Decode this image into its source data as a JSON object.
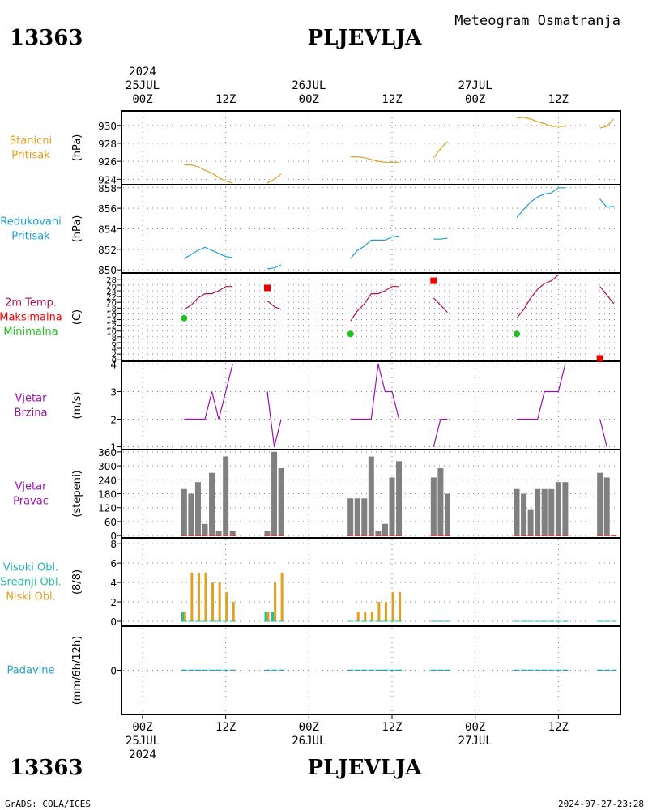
{
  "header": {
    "station_id": "13363",
    "station_name": "PLJEVLJA",
    "product": "Meteogram Osmatranja",
    "footer_left": "GrADS: COLA/IGES",
    "footer_right": "2024-07-27-23:28"
  },
  "colors": {
    "pressure_station": "#e0a020",
    "pressure_reduced": "#1f9fd0",
    "temperature": "#b0105a",
    "tmax": "#ee0000",
    "tmin": "#20c020",
    "wind": "#9a10b0",
    "direction_bar": "#808080",
    "direction_base": "#cc3030",
    "cloud_low": "#e0a020",
    "cloud_mid": "#20c0a0",
    "precip": "#20a0c0"
  },
  "time_axis": {
    "start_hour": 0,
    "end_hour": 72,
    "top_year": "2024",
    "top_labels": [
      {
        "hour": 0,
        "lines": [
          "25JUL",
          "00Z"
        ]
      },
      {
        "hour": 12,
        "lines": [
          "",
          "12Z"
        ]
      },
      {
        "hour": 24,
        "lines": [
          "26JUL",
          "00Z"
        ]
      },
      {
        "hour": 36,
        "lines": [
          "",
          "12Z"
        ]
      },
      {
        "hour": 48,
        "lines": [
          "27JUL",
          "00Z"
        ]
      },
      {
        "hour": 60,
        "lines": [
          "",
          "12Z"
        ]
      }
    ],
    "bottom_labels": [
      {
        "hour": 0,
        "lines": [
          "00Z",
          "25JUL",
          "2024"
        ]
      },
      {
        "hour": 12,
        "lines": [
          "12Z"
        ]
      },
      {
        "hour": 24,
        "lines": [
          "00Z",
          "26JUL"
        ]
      },
      {
        "hour": 36,
        "lines": [
          "12Z"
        ]
      },
      {
        "hour": 48,
        "lines": [
          "00Z",
          "27JUL"
        ]
      },
      {
        "hour": 60,
        "lines": [
          "12Z"
        ]
      }
    ]
  },
  "chart_data": [
    {
      "type": "line",
      "id": "station_pressure",
      "labels": [
        "Stanicni",
        "Pritisak"
      ],
      "label_colors": [
        "#e0a020",
        "#e0a020"
      ],
      "ylabel": "(hPa)",
      "ylim": [
        923.4,
        931.6
      ],
      "yticks": [
        924,
        926,
        928,
        930
      ],
      "series": [
        {
          "segments": [
            [
              [
                6,
                925.6
              ],
              [
                7,
                925.6
              ],
              [
                8,
                925.4
              ],
              [
                9,
                925.0
              ],
              [
                10,
                924.7
              ],
              [
                11,
                924.2
              ],
              [
                12,
                923.8
              ],
              [
                13,
                923.6
              ]
            ],
            [
              [
                18,
                923.6
              ],
              [
                19,
                924.0
              ],
              [
                20,
                924.6
              ]
            ],
            [
              [
                30,
                926.5
              ],
              [
                31,
                926.5
              ],
              [
                32,
                926.4
              ],
              [
                33,
                926.2
              ],
              [
                34,
                926.0
              ],
              [
                35,
                925.9
              ],
              [
                36,
                925.9
              ],
              [
                37,
                925.9
              ]
            ],
            [
              [
                42,
                926.4
              ],
              [
                43,
                927.4
              ],
              [
                44,
                928.2
              ]
            ],
            [
              [
                54,
                930.8
              ],
              [
                55,
                930.9
              ],
              [
                56,
                930.7
              ],
              [
                57,
                930.4
              ],
              [
                58,
                930.2
              ],
              [
                59,
                929.9
              ],
              [
                60,
                929.9
              ],
              [
                61,
                929.9
              ]
            ],
            [
              [
                66,
                929.7
              ],
              [
                67,
                929.9
              ],
              [
                68,
                930.7
              ]
            ]
          ]
        }
      ]
    },
    {
      "type": "line",
      "id": "reduced_pressure",
      "labels": [
        "Redukovani",
        "Pritisak"
      ],
      "label_colors": [
        "#1f9fd0",
        "#1f9fd0"
      ],
      "ylabel": "(hPa)",
      "ylim": [
        849.7,
        858.3
      ],
      "yticks": [
        850,
        852,
        854,
        856,
        858
      ],
      "series": [
        {
          "segments": [
            [
              [
                6,
                851.1
              ],
              [
                7,
                851.5
              ],
              [
                8,
                851.9
              ],
              [
                9,
                852.2
              ],
              [
                10,
                851.9
              ],
              [
                11,
                851.6
              ],
              [
                12,
                851.3
              ],
              [
                13,
                851.2
              ]
            ],
            [
              [
                18,
                850.1
              ],
              [
                19,
                850.2
              ],
              [
                20,
                850.5
              ]
            ],
            [
              [
                30,
                851.1
              ],
              [
                31,
                851.9
              ],
              [
                32,
                852.3
              ],
              [
                33,
                852.9
              ],
              [
                34,
                852.9
              ],
              [
                35,
                852.9
              ],
              [
                36,
                853.2
              ],
              [
                37,
                853.3
              ]
            ],
            [
              [
                42,
                853.0
              ],
              [
                43,
                853.0
              ],
              [
                44,
                853.1
              ]
            ],
            [
              [
                54,
                855.1
              ],
              [
                55,
                855.9
              ],
              [
                56,
                856.6
              ],
              [
                57,
                857.1
              ],
              [
                58,
                857.4
              ],
              [
                59,
                857.5
              ],
              [
                60,
                858.0
              ],
              [
                61,
                858.0
              ]
            ],
            [
              [
                66,
                856.9
              ],
              [
                67,
                856.1
              ],
              [
                68,
                856.2
              ]
            ]
          ]
        }
      ]
    },
    {
      "type": "line",
      "id": "temperature",
      "labels": [
        "2m Temp.",
        "Maksimalna",
        "Minimalna"
      ],
      "label_colors": [
        "#b0105a",
        "#ee0000",
        "#20c020"
      ],
      "ylabel": "(C)",
      "ylim": [
        -0.5,
        30.2
      ],
      "yticks": [
        0,
        2,
        4,
        6,
        8,
        10,
        12,
        14,
        16,
        18,
        20,
        22,
        24,
        26,
        28
      ],
      "series": [
        {
          "segments": [
            [
              [
                6,
                17.5
              ],
              [
                7,
                19.0
              ],
              [
                8,
                21.5
              ],
              [
                9,
                23.0
              ],
              [
                10,
                23.0
              ],
              [
                11,
                24.0
              ],
              [
                12,
                25.5
              ],
              [
                13,
                25.5
              ]
            ],
            [
              [
                18,
                20.5
              ],
              [
                19,
                18.5
              ],
              [
                20,
                17.5
              ]
            ],
            [
              [
                30,
                13.5
              ],
              [
                31,
                17.0
              ],
              [
                32,
                19.5
              ],
              [
                33,
                23.0
              ],
              [
                34,
                23.0
              ],
              [
                35,
                24.0
              ],
              [
                36,
                25.5
              ],
              [
                37,
                25.5
              ]
            ],
            [
              [
                42,
                21.5
              ],
              [
                43,
                19.0
              ],
              [
                44,
                16.5
              ]
            ],
            [
              [
                54,
                14.5
              ],
              [
                55,
                17.5
              ],
              [
                56,
                21.5
              ],
              [
                57,
                24.5
              ],
              [
                58,
                26.5
              ],
              [
                59,
                27.5
              ],
              [
                60,
                29.5
              ]
            ],
            [
              [
                66,
                25.5
              ],
              [
                67,
                22.5
              ],
              [
                68,
                19.5
              ]
            ]
          ]
        }
      ],
      "tmax": [
        [
          18,
          25.0
        ],
        [
          42,
          27.5
        ],
        [
          66,
          0.5
        ]
      ],
      "tmin": [
        [
          6,
          14.5
        ],
        [
          30,
          9.0
        ],
        [
          54,
          9.0
        ]
      ]
    },
    {
      "type": "line",
      "id": "wind_speed",
      "labels": [
        "Vjetar",
        "Brzina"
      ],
      "label_colors": [
        "#9a10b0",
        "#9a10b0"
      ],
      "ylabel": "(m/s)",
      "ylim": [
        0.9,
        4.1
      ],
      "yticks": [
        1,
        2,
        3,
        4
      ],
      "series": [
        {
          "segments": [
            [
              [
                6,
                2
              ],
              [
                7,
                2
              ],
              [
                8,
                2
              ],
              [
                9,
                2
              ],
              [
                10,
                3
              ],
              [
                11,
                2
              ],
              [
                12,
                3
              ],
              [
                13,
                4
              ]
            ],
            [
              [
                18,
                3
              ],
              [
                19,
                1
              ],
              [
                20,
                2
              ]
            ],
            [
              [
                30,
                2
              ],
              [
                31,
                2
              ],
              [
                32,
                2
              ],
              [
                33,
                2
              ],
              [
                34,
                4
              ],
              [
                35,
                3
              ],
              [
                36,
                3
              ],
              [
                37,
                2
              ]
            ],
            [
              [
                42,
                1
              ],
              [
                43,
                2
              ],
              [
                44,
                2
              ]
            ],
            [
              [
                54,
                2
              ],
              [
                55,
                2
              ],
              [
                56,
                2
              ],
              [
                57,
                2
              ],
              [
                58,
                3
              ],
              [
                59,
                3
              ],
              [
                60,
                3
              ],
              [
                61,
                4
              ]
            ],
            [
              [
                66,
                2
              ],
              [
                67,
                1
              ]
            ]
          ]
        }
      ]
    },
    {
      "type": "bar",
      "id": "wind_direction",
      "labels": [
        "Vjetar",
        "Pravac"
      ],
      "label_colors": [
        "#9a10b0",
        "#9a10b0"
      ],
      "ylabel": "(stepeni)",
      "ylim": [
        -10,
        370
      ],
      "yticks": [
        0,
        60,
        120,
        180,
        240,
        300,
        360
      ],
      "x": [
        6,
        7,
        8,
        9,
        10,
        11,
        12,
        13,
        18,
        19,
        20,
        30,
        31,
        32,
        33,
        34,
        35,
        36,
        37,
        42,
        43,
        44,
        54,
        55,
        56,
        57,
        58,
        59,
        60,
        61,
        66,
        67,
        68
      ],
      "values": [
        200,
        180,
        230,
        50,
        270,
        20,
        340,
        20,
        20,
        360,
        290,
        160,
        160,
        160,
        340,
        20,
        50,
        250,
        320,
        250,
        290,
        180,
        200,
        180,
        110,
        200,
        200,
        200,
        230,
        230,
        270,
        250,
        0
      ]
    },
    {
      "type": "bar",
      "id": "cloud_cover",
      "labels": [
        "Visoki Obl.",
        "Srednji Obl.",
        "Niski Obl."
      ],
      "label_colors": [
        "#20b0c0",
        "#20c0a0",
        "#e0a020"
      ],
      "ylabel": "(8/8)",
      "ylim": [
        -0.5,
        8.6
      ],
      "yticks": [
        0,
        2,
        4,
        6,
        8
      ],
      "x": [
        6,
        7,
        8,
        9,
        10,
        11,
        12,
        13,
        18,
        19,
        20,
        30,
        31,
        32,
        33,
        34,
        35,
        36,
        37,
        42,
        43,
        44,
        54,
        55,
        56,
        57,
        58,
        59,
        60,
        61,
        66,
        67,
        68
      ],
      "mid": [
        1,
        0,
        0,
        0,
        0,
        0,
        0,
        0,
        1,
        1,
        0,
        0,
        0,
        0,
        0,
        0,
        0,
        0,
        0,
        0,
        0,
        0,
        0,
        0,
        0,
        0,
        0,
        0,
        0,
        0,
        0,
        0,
        0
      ],
      "low": [
        1,
        5,
        5,
        5,
        4,
        4,
        3,
        2,
        1,
        4,
        5,
        0,
        1,
        1,
        1,
        2,
        2,
        3,
        3,
        0,
        0,
        0,
        0,
        0,
        0,
        0,
        0,
        0,
        0,
        0,
        0,
        0,
        0
      ]
    },
    {
      "type": "bar",
      "id": "precipitation",
      "labels": [
        "Padavine"
      ],
      "label_colors": [
        "#20a0c0"
      ],
      "ylabel": "(mm/6h/12h)",
      "ylim": [
        -1,
        1
      ],
      "yticks": [
        0
      ],
      "x": [
        6,
        7,
        8,
        9,
        10,
        11,
        12,
        13,
        18,
        19,
        20,
        30,
        31,
        32,
        33,
        34,
        35,
        36,
        37,
        42,
        43,
        44,
        54,
        55,
        56,
        57,
        58,
        59,
        60,
        61,
        66,
        67,
        68
      ],
      "values": [
        0,
        0,
        0,
        0,
        0,
        0,
        0,
        0,
        0,
        0,
        0,
        0,
        0,
        0,
        0,
        0,
        0,
        0,
        0,
        0,
        0,
        0,
        0,
        0,
        0,
        0,
        0,
        0,
        0,
        0,
        0,
        0,
        0
      ]
    }
  ]
}
